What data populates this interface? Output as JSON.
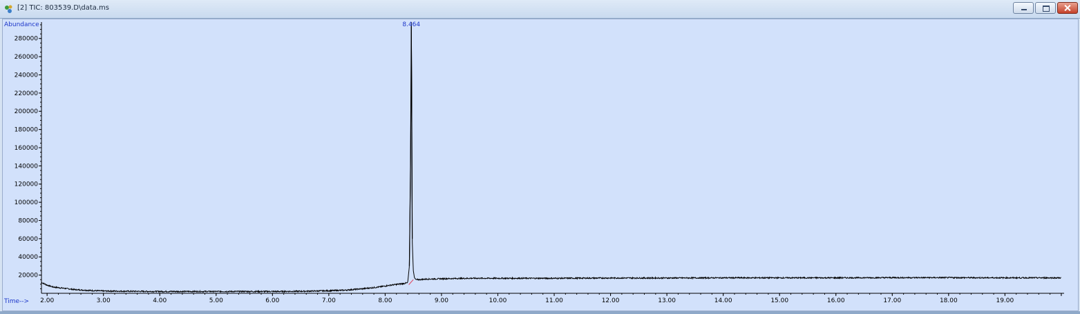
{
  "window": {
    "title": "[2] TIC: 803539.D\\data.ms",
    "icon": "chromatogram-app-icon"
  },
  "controls": {
    "minimize": "minimize-icon",
    "maximize": "maximize-icon",
    "close": "close-icon"
  },
  "colors": {
    "plot_background": "#d2e1fb",
    "trace": "#000000",
    "axis_title": "#1c36c9",
    "peak_label": "#1c36c9",
    "baseline_marker": "#e0405a"
  },
  "chart_data": {
    "type": "line",
    "title": "",
    "xlabel": "Time-->",
    "ylabel": "Abundance",
    "xlim": [
      1.9,
      20.05
    ],
    "ylim": [
      0,
      298000
    ],
    "x_ticks": [
      "2.00",
      "3.00",
      "4.00",
      "5.00",
      "6.00",
      "7.00",
      "8.00",
      "9.00",
      "10.00",
      "11.00",
      "12.00",
      "13.00",
      "14.00",
      "15.00",
      "16.00",
      "17.00",
      "18.00",
      "19.00"
    ],
    "y_ticks": [
      "20000",
      "40000",
      "60000",
      "80000",
      "100000",
      "120000",
      "140000",
      "160000",
      "180000",
      "200000",
      "220000",
      "240000",
      "260000",
      "280000"
    ],
    "grid": false,
    "peak_labels": [
      {
        "x": 8.464,
        "label": "8.464"
      }
    ],
    "series": [
      {
        "values_x": [
          1.9,
          2.0,
          2.1,
          2.3,
          2.5,
          2.8,
          3.0,
          3.5,
          4.0,
          4.5,
          5.0,
          5.5,
          6.0,
          6.5,
          7.0,
          7.3,
          7.6,
          7.9,
          8.1,
          8.3,
          8.4,
          8.43,
          8.45,
          8.46,
          8.464,
          8.47,
          8.48,
          8.5,
          8.52,
          8.55,
          8.6,
          8.7,
          9.0,
          9.5,
          10.0,
          11.0,
          12.0,
          13.0,
          14.0,
          15.0,
          16.0,
          17.0,
          18.0,
          19.0,
          20.0
        ],
        "values_y": [
          12000,
          9000,
          7000,
          5500,
          4000,
          3000,
          2500,
          2200,
          2000,
          2000,
          2000,
          2000,
          2000,
          2200,
          2800,
          3500,
          5000,
          7000,
          9000,
          10500,
          11500,
          30000,
          140000,
          240000,
          298000,
          236000,
          60000,
          25000,
          17000,
          15000,
          15000,
          15500,
          16000,
          16500,
          16500,
          16500,
          16800,
          16800,
          17000,
          17000,
          17000,
          17200,
          17200,
          17000,
          17000
        ]
      }
    ]
  }
}
